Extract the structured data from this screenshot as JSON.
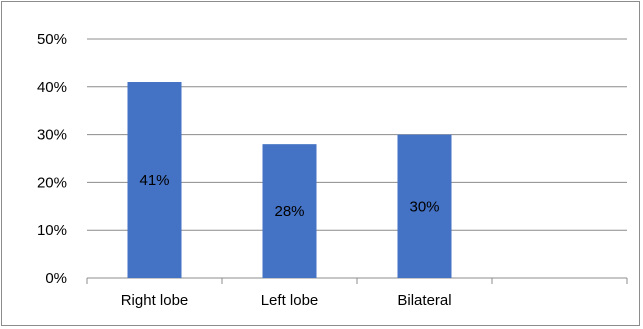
{
  "chart_data": {
    "type": "bar",
    "categories": [
      "Right lobe",
      "Left lobe",
      "Bilateral",
      ""
    ],
    "values": [
      41,
      28,
      30,
      null
    ],
    "data_labels": [
      "41%",
      "28%",
      "30%",
      ""
    ],
    "y_ticks": [
      "0%",
      "10%",
      "20%",
      "30%",
      "40%",
      "50%"
    ],
    "ylim": [
      0,
      50
    ],
    "grid": true,
    "bar_color": "#4472C4",
    "legend": "none",
    "title": "",
    "xlabel": "",
    "ylabel": ""
  }
}
